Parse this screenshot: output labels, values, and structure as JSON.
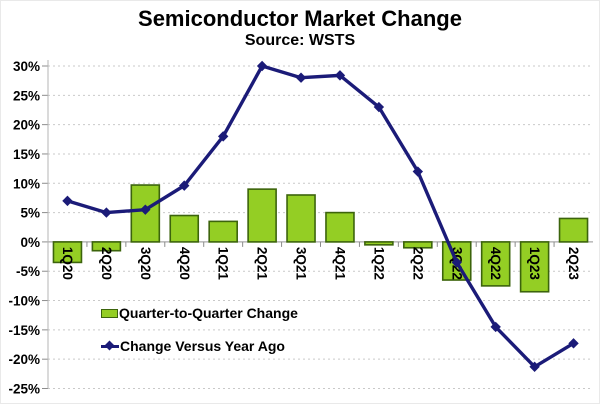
{
  "title": "Semiconductor Market Change",
  "subtitle": "Source: WSTS",
  "chart_data": {
    "type": "bar",
    "subtype": "combo-bar-line",
    "categories": [
      "1Q20",
      "2Q20",
      "3Q20",
      "4Q20",
      "1Q21",
      "2Q21",
      "3Q21",
      "4Q21",
      "1Q22",
      "2Q22",
      "3Q22",
      "4Q22",
      "1Q23",
      "2Q23"
    ],
    "series": [
      {
        "name": "Quarter-to-Quarter Change",
        "type": "bar",
        "values": [
          -3.5,
          -1.5,
          9.7,
          4.5,
          3.5,
          9.0,
          8.0,
          5.0,
          -0.5,
          -1.0,
          -6.5,
          -7.5,
          -8.5,
          4.0
        ]
      },
      {
        "name": "Change Versus Year Ago",
        "type": "line",
        "marker": "diamond",
        "values": [
          7.0,
          5.0,
          5.5,
          9.6,
          18.0,
          30.0,
          28.0,
          28.4,
          23.0,
          12.0,
          -3.5,
          -14.5,
          -21.3,
          -17.3
        ]
      }
    ],
    "title": "Semiconductor Market Change",
    "subtitle": "Source: WSTS",
    "xlabel": "",
    "ylabel": "",
    "ylim": [
      -25,
      30
    ],
    "ytick_step": 5,
    "ytick_labels": [
      "30%",
      "25%",
      "20%",
      "15%",
      "10%",
      "5%",
      "0%",
      "-5%",
      "-10%",
      "-15%",
      "-20%",
      "-25%"
    ],
    "grid": "dashed-horizontal",
    "legend_position": "inside-lower-left",
    "x_tick_rotation_deg": 90
  },
  "colors": {
    "bar_fill": "#94CE24",
    "bar_border": "#3C640C",
    "line": "#1B1B78",
    "grid": "#C9C9C9",
    "zero_axis": "#A8A8A8",
    "axis": "#B5B5B5",
    "tick": "#8C8C8C",
    "text": "#000000",
    "background": "#FFFFFF"
  }
}
